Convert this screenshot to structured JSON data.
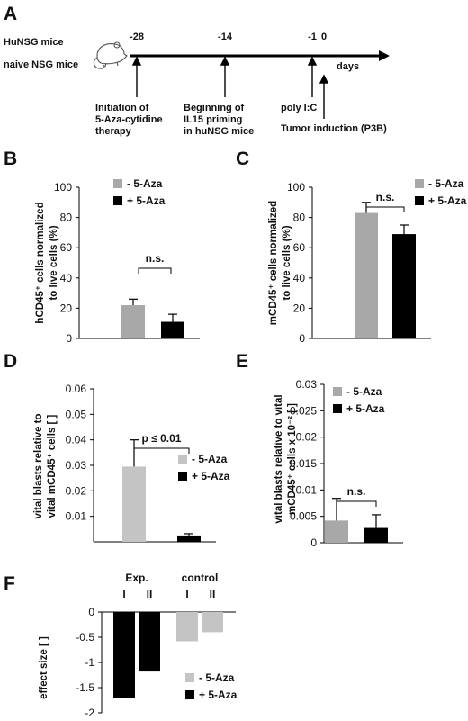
{
  "panel_a": {
    "letter": "A",
    "row_labels": [
      "HuNSG mice",
      "naive NSG mice"
    ],
    "timepoints": [
      "-28",
      "-14",
      "-1",
      "0"
    ],
    "axis_unit": "days",
    "events": [
      {
        "lines": [
          "Initiation of",
          "5-Aza-cytidine",
          "therapy"
        ]
      },
      {
        "lines": [
          "Beginning of",
          "IL15 priming",
          "in huNSG mice"
        ]
      },
      {
        "lines": [
          "poly I:C"
        ]
      },
      {
        "lines": [
          "Tumor induction (P3B)"
        ]
      }
    ],
    "mouse_icon": "mouse-icon"
  },
  "colors": {
    "minus_aza": "#a8a8a8",
    "minus_aza_light": "#c4c4c4",
    "plus_aza": "#000000"
  },
  "chart_data": [
    {
      "panel": "B",
      "type": "bar",
      "ylabel_lines": [
        "hCD45⁺ cells normalized",
        "to live cells (%)"
      ],
      "ylim": [
        0,
        100
      ],
      "yticks": [
        "0",
        "20",
        "40",
        "60",
        "80",
        "100"
      ],
      "series": [
        {
          "name": "- 5-Aza",
          "value": 22,
          "error": 4
        },
        {
          "name": "+ 5-Aza",
          "value": 11,
          "error": 5
        }
      ],
      "annotation": "n.s.",
      "legend_position": "top-right"
    },
    {
      "panel": "C",
      "type": "bar",
      "ylabel_lines": [
        "mCD45⁺ cells normalized",
        "to live cells (%)"
      ],
      "ylim": [
        0,
        100
      ],
      "yticks": [
        "0",
        "20",
        "40",
        "60",
        "80",
        "100"
      ],
      "series": [
        {
          "name": "- 5-Aza",
          "value": 83,
          "error": 7
        },
        {
          "name": "+ 5-Aza",
          "value": 69,
          "error": 6
        }
      ],
      "annotation": "n.s.",
      "legend_position": "top-right"
    },
    {
      "panel": "D",
      "type": "bar",
      "ylabel_lines": [
        "vital blasts relative to",
        "vital mCD45⁺ cells [ ]"
      ],
      "ylim": [
        0,
        0.06
      ],
      "yticks": [
        "0.01",
        "0.02",
        "0.03",
        "0.04",
        "0.05",
        "0.06"
      ],
      "series": [
        {
          "name": "- 5-Aza",
          "value": 0.0295,
          "error": 0.0105
        },
        {
          "name": "+ 5-Aza",
          "value": 0.0025,
          "error": 0.0007
        }
      ],
      "annotation": "p ≤ 0.01",
      "legend_position": "right"
    },
    {
      "panel": "E",
      "type": "bar",
      "ylabel_lines": [
        "vital blasts relative to vital",
        "mCD45⁺ cells x 10⁻² [ ]"
      ],
      "ylim": [
        0,
        0.03
      ],
      "yticks": [
        "0",
        "0.005",
        "0.01",
        "0.015",
        "0.02",
        "0.025",
        "0.03"
      ],
      "series": [
        {
          "name": "- 5-Aza",
          "value": 0.0042,
          "error": 0.0042
        },
        {
          "name": "+ 5-Aza",
          "value": 0.0028,
          "error": 0.0025
        }
      ],
      "annotation": "n.s.",
      "legend_position": "top-left"
    },
    {
      "panel": "F",
      "type": "bar",
      "ylabel": "effect size [ ]",
      "ylim": [
        -2,
        0
      ],
      "yticks": [
        "0",
        "-0.5",
        "-1",
        "-1.5",
        "-2"
      ],
      "groups": [
        "Exp.",
        "control"
      ],
      "categories": [
        "I",
        "II",
        "I",
        "II"
      ],
      "values": [
        -1.7,
        -1.18,
        -0.58,
        -0.4
      ],
      "bar_series": [
        "+ 5-Aza",
        "+ 5-Aza",
        "- 5-Aza",
        "- 5-Aza"
      ],
      "legend": [
        "- 5-Aza",
        "+ 5-Aza"
      ],
      "legend_position": "bottom-right"
    }
  ]
}
